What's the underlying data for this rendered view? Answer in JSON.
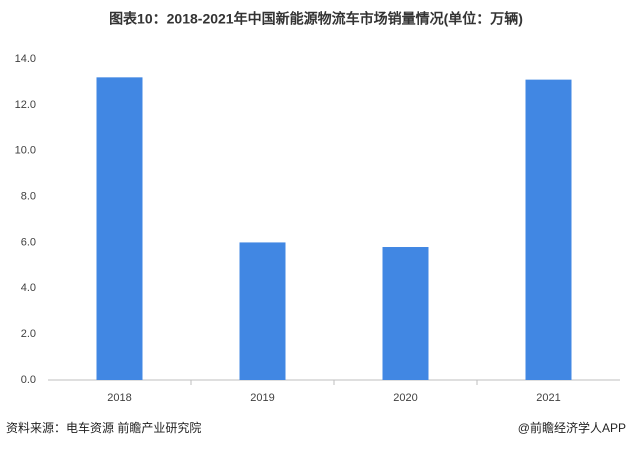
{
  "chart_data": {
    "type": "bar",
    "title": "图表10：2018-2021年中国新能源物流车市场销量情况(单位：万辆)",
    "categories": [
      "2018",
      "2019",
      "2020",
      "2021"
    ],
    "values": [
      13.2,
      6.0,
      5.8,
      13.1
    ],
    "color": "#4187e3",
    "ylim": [
      0,
      14
    ],
    "yticks": [
      {
        "value": 0,
        "label": "0.0"
      },
      {
        "value": 2,
        "label": "2.0"
      },
      {
        "value": 4,
        "label": "4.0"
      },
      {
        "value": 6,
        "label": "6.0"
      },
      {
        "value": 8,
        "label": "8.0"
      },
      {
        "value": 10,
        "label": "10.0"
      },
      {
        "value": 12,
        "label": "12.0"
      },
      {
        "value": 14,
        "label": "14.0"
      }
    ],
    "grid": false,
    "source": "资料来源：电车资源 前瞻产业研究院",
    "credit": "@前瞻经济学人APP"
  }
}
